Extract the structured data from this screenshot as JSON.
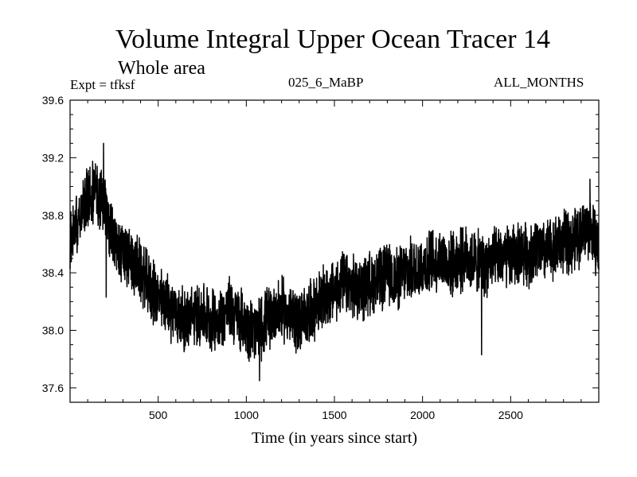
{
  "chart_data": {
    "type": "line",
    "title": "Volume Integral Upper Ocean Tracer 14",
    "subtitle": "Whole area",
    "expt_label": "Expt = tfksf",
    "run_label": "025_6_MaBP",
    "months_label": "ALL_MONTHS",
    "xlabel": "Time (in years since start)",
    "ylabel": "",
    "xlim": [
      0,
      3000
    ],
    "ylim": [
      37.5,
      39.6
    ],
    "xticks": [
      500,
      1000,
      1500,
      2000,
      2500
    ],
    "xtick_labels": [
      "500",
      "1000",
      "1500",
      "2000",
      "2500"
    ],
    "yticks": [
      37.6,
      38.0,
      38.4,
      38.8,
      39.2,
      39.6
    ],
    "ytick_labels": [
      "37.6",
      "38.0",
      "38.4",
      "38.8",
      "39.2",
      "39.6"
    ],
    "series": [
      {
        "name": "Tracer 14",
        "color": "#000000",
        "x": [
          0,
          50,
          100,
          150,
          200,
          250,
          300,
          350,
          400,
          450,
          500,
          550,
          600,
          650,
          700,
          750,
          800,
          850,
          900,
          950,
          1000,
          1050,
          1100,
          1150,
          1200,
          1250,
          1300,
          1350,
          1400,
          1450,
          1500,
          1550,
          1600,
          1650,
          1700,
          1750,
          1800,
          1850,
          1900,
          1950,
          2000,
          2050,
          2100,
          2150,
          2200,
          2250,
          2300,
          2350,
          2400,
          2450,
          2500,
          2550,
          2600,
          2650,
          2700,
          2750,
          2800,
          2850,
          2900,
          2950,
          3000
        ],
        "values": [
          38.65,
          38.8,
          38.92,
          38.97,
          38.85,
          38.6,
          38.52,
          38.48,
          38.4,
          38.3,
          38.22,
          38.18,
          38.12,
          38.06,
          38.1,
          38.12,
          38.08,
          38.07,
          38.15,
          38.1,
          38.05,
          37.98,
          38.05,
          38.12,
          38.15,
          38.1,
          38.05,
          38.12,
          38.18,
          38.22,
          38.28,
          38.32,
          38.3,
          38.28,
          38.33,
          38.35,
          38.38,
          38.35,
          38.4,
          38.42,
          38.45,
          38.48,
          38.5,
          38.45,
          38.48,
          38.5,
          38.48,
          38.45,
          38.48,
          38.52,
          38.5,
          38.55,
          38.53,
          38.55,
          38.55,
          38.58,
          38.62,
          38.6,
          38.68,
          38.72,
          38.55
        ],
        "noise_amplitude": 0.25,
        "extremes": [
          {
            "x": 190,
            "y": 39.3
          },
          {
            "x": 205,
            "y": 38.23
          },
          {
            "x": 1075,
            "y": 37.65
          },
          {
            "x": 2335,
            "y": 37.83
          },
          {
            "x": 2950,
            "y": 39.05
          }
        ]
      }
    ]
  }
}
